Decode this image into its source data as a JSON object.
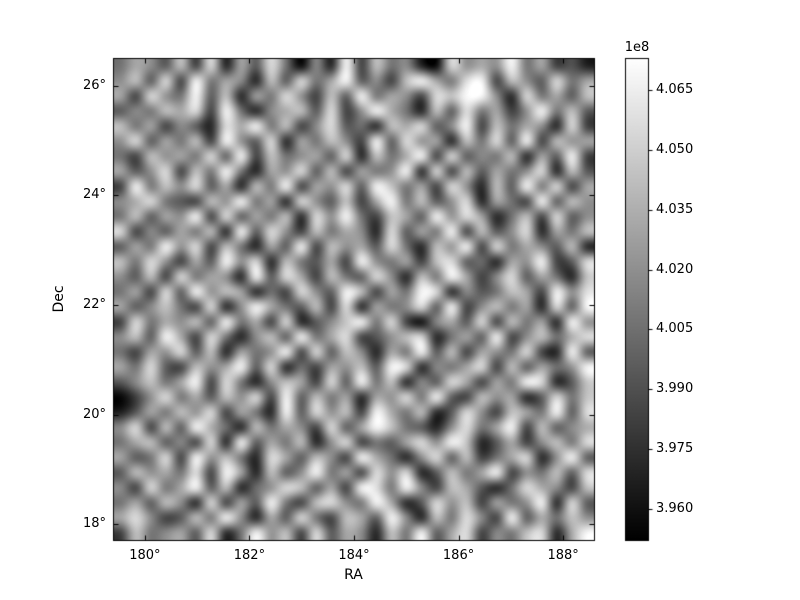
{
  "colors": {
    "background": "#ffffff",
    "frame": "#000000",
    "text": "#000000",
    "cmap_low": "#000000",
    "cmap_high": "#ffffff"
  },
  "chart_data": {
    "type": "heatmap",
    "title": "",
    "xlabel": "RA",
    "ylabel": "Dec",
    "xlim": [
      179.4,
      188.6
    ],
    "ylim": [
      17.7,
      26.5
    ],
    "grid_on": false,
    "colormap": "gray",
    "x_ticks": {
      "values": [
        180,
        182,
        184,
        186,
        188
      ],
      "labels": [
        "180°",
        "182°",
        "184°",
        "186°",
        "188°"
      ]
    },
    "y_ticks": {
      "values": [
        18,
        20,
        22,
        24,
        26
      ],
      "labels": [
        "18°",
        "20°",
        "22°",
        "24°",
        "26°"
      ]
    },
    "colorbar": {
      "offset_label": "1e8",
      "vmin": 3.952,
      "vmax": 4.073,
      "tick_values": [
        3.96,
        3.975,
        3.99,
        4.005,
        4.02,
        4.035,
        4.05,
        4.065
      ],
      "tick_labels": [
        "3.960",
        "3.975",
        "3.990",
        "4.005",
        "4.020",
        "4.035",
        "4.050",
        "4.065"
      ],
      "orientation": "vertical"
    },
    "grid": {
      "rows": 32,
      "cols": 32,
      "encoding": "each digit 0-9 maps linearly from vmin to vmax (units of 1e8)",
      "intensity_rows": [
        "46537281638405192745108565946231",
        "57382946517384693527964892753846",
        "62854937164852739465287995184637",
        "35476829415673825964173846259473",
        "74625318694725834176835927465182",
        "58364729538164752938561748392756",
        "42756483927456381746928354716392",
        "63582749416583726459182736458173",
        "29475836174926583974628517394826",
        "56843275946185372694735816429375",
        "47365928364718594276395861472835",
        "82536471938527465183649273581647",
        "36495827416392756384175928465371",
        "74852639581743629546278341659238",
        "53728465193862743851749625836417",
        "46283957614285397264981534762958",
        "63574281596437281645839257461839",
        "28465739462813579482056382746195",
        "57396284157394682357814639257468",
        "42658371645928375164937265482193",
        "64832756938142657398154682736459",
        "35746928415762839471538626498137",
        "02584637582937461658493275613847",
        "13647582641938572964713852764938",
        "58273964174652836974315846927356",
        "46735281936471582436859713625748",
        "63482957418637529641583724681593",
        "37564829617359462858137469254738",
        "52846937145873629849527631486527",
        "46375182639427854961385726459183",
        "68523749516384276395174852936475",
        "27456381495728365174936825478169"
      ]
    }
  }
}
